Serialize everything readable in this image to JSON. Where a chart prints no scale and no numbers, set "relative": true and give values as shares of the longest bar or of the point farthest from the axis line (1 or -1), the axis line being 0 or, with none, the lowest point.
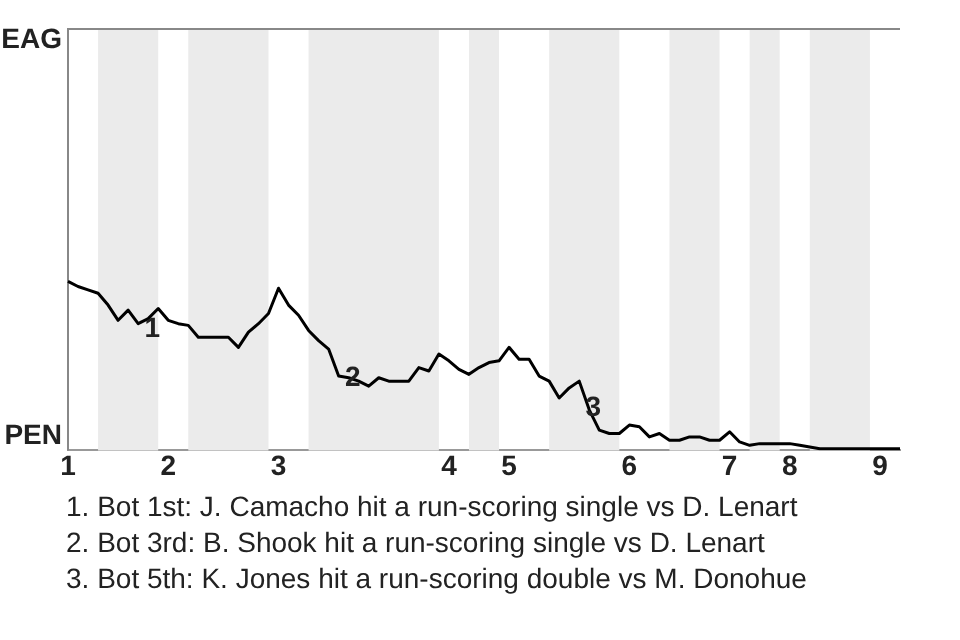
{
  "chart_data": {
    "type": "line",
    "relative": true,
    "categories": [
      "1",
      null,
      null,
      null,
      null,
      null,
      null,
      null,
      null,
      null,
      "2",
      null,
      null,
      null,
      null,
      null,
      null,
      null,
      null,
      null,
      null,
      "3",
      null,
      null,
      null,
      null,
      null,
      null,
      null,
      null,
      null,
      null,
      null,
      null,
      null,
      null,
      null,
      null,
      "4",
      null,
      null,
      null,
      null,
      null,
      "5",
      null,
      null,
      null,
      null,
      null,
      null,
      null,
      null,
      null,
      null,
      null,
      "6",
      null,
      null,
      null,
      null,
      null,
      null,
      null,
      null,
      null,
      "7",
      null,
      null,
      null,
      null,
      null,
      "8",
      null,
      null,
      null,
      null,
      null,
      null,
      null,
      null,
      "9",
      null,
      null
    ],
    "series": [
      {
        "color": "#000000",
        "values": [
          1,
          0.97,
          0.95,
          0.93,
          0.86,
          0.77,
          0.83,
          0.75,
          0.78,
          0.84,
          0.77,
          0.75,
          0.74,
          0.67,
          0.67,
          0.67,
          0.67,
          0.61,
          0.7,
          0.75,
          0.81,
          0.96,
          0.86,
          0.8,
          0.71,
          0.65,
          0.6,
          0.44,
          0.43,
          0.41,
          0.38,
          0.43,
          0.41,
          0.41,
          0.41,
          0.49,
          0.47,
          0.57,
          0.53,
          0.48,
          0.45,
          0.49,
          0.52,
          0.53,
          0.61,
          0.54,
          0.54,
          0.44,
          0.41,
          0.31,
          0.37,
          0.41,
          0.24,
          0.12,
          0.1,
          0.1,
          0.15,
          0.14,
          0.08,
          0.1,
          0.06,
          0.06,
          0.08,
          0.08,
          0.06,
          0.06,
          0.11,
          0.05,
          0.03,
          0.04,
          0.04,
          0.04,
          0.04,
          0.03,
          0.02,
          0.01,
          0.01,
          0.01,
          0.01,
          0.01,
          0.01,
          0.01,
          0.01,
          0.01
        ]
      }
    ],
    "annotations": [
      "EAG",
      "PEN",
      {
        "text": "1",
        "y": 0.74
      },
      {
        "text": "2",
        "y": 0.45
      },
      {
        "text": "3",
        "y": 0.27
      },
      "1. Bot 1st: J. Camacho hit a run-scoring single vs D. Lenart",
      "2. Bot 3rd: B. Shook hit a run-scoring single vs D. Lenart",
      "3. Bot 5th: K. Jones hit a run-scoring double vs M. Donohue"
    ]
  }
}
